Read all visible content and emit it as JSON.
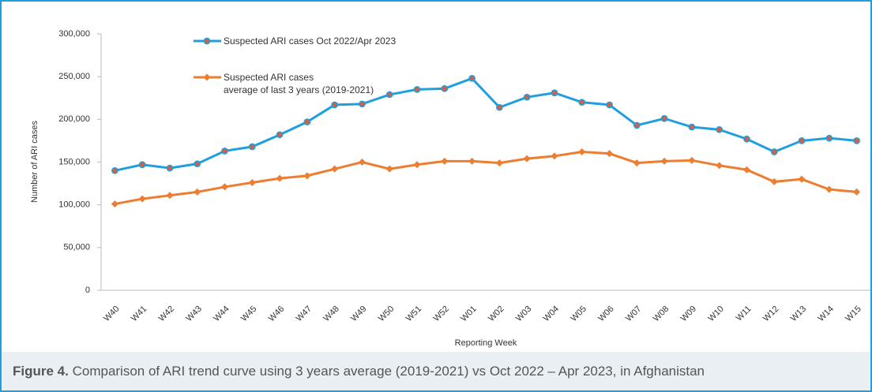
{
  "chart_data": {
    "type": "line",
    "y_axis_label": "Number of ARI cases",
    "x_axis_label": "Reporting Week",
    "categories": [
      "W40",
      "W41",
      "W42",
      "W43",
      "W44",
      "W45",
      "W46",
      "W47",
      "W48",
      "W49",
      "W50",
      "W51",
      "W52",
      "W01",
      "W02",
      "W03",
      "W04",
      "W05",
      "W06",
      "W07",
      "W08",
      "W09",
      "W10",
      "W11",
      "W12",
      "W13",
      "W14",
      "W15"
    ],
    "series": [
      {
        "name": "Suspected ARI cases Oct 2022/Apr 2023",
        "color": "#1f9fdc",
        "marker": "circle",
        "values": [
          140000,
          147000,
          143000,
          148000,
          163000,
          168000,
          182000,
          197000,
          217000,
          218000,
          229000,
          235000,
          236000,
          248000,
          214000,
          226000,
          231000,
          220000,
          217000,
          193000,
          201000,
          191000,
          188000,
          177000,
          162000,
          175000,
          178000,
          175000
        ]
      },
      {
        "name": "Suspected ARI cases\naverage of last 3 years (2019-2021)",
        "color": "#ed7d31",
        "marker": "diamond",
        "values": [
          101000,
          107000,
          111000,
          115000,
          121000,
          126000,
          131000,
          134000,
          142000,
          150000,
          142000,
          147000,
          151000,
          151000,
          149000,
          154000,
          157000,
          162000,
          160000,
          149000,
          151000,
          152000,
          146000,
          141000,
          127000,
          130000,
          118000,
          115000
        ]
      }
    ],
    "ylim": [
      0,
      300000
    ],
    "yticks": [
      0,
      {
        "value": 50000,
        "label": "50,000"
      },
      {
        "value": 100000,
        "label": "100,000"
      },
      {
        "value": 150000,
        "label": "150,000"
      },
      {
        "value": 200000,
        "label": "200,000"
      },
      {
        "value": 250000,
        "label": "250,000"
      },
      {
        "value": 300000,
        "label": "300,000"
      }
    ],
    "grid": false
  },
  "caption": {
    "label": "Figure 4.",
    "text": "Comparison of ARI trend curve using 3 years average (2019-2021) vs Oct 2022 – Apr 2023, in Afghanistan"
  }
}
